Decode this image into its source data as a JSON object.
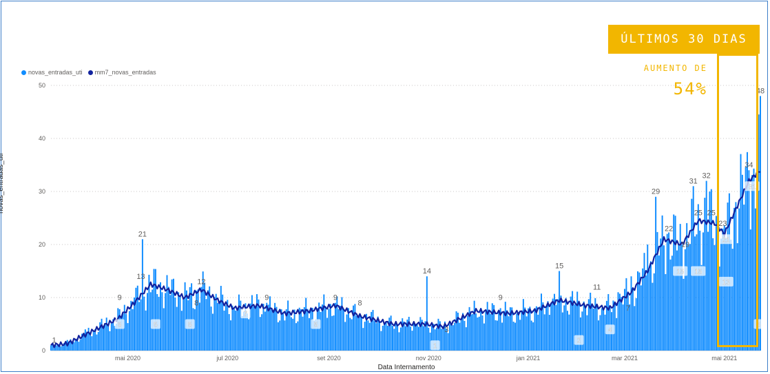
{
  "chart_data": {
    "type": "bar",
    "xlabel": "Data Internamento",
    "ylabel": "novas_entradas_uti",
    "ylim": [
      0,
      50
    ],
    "yticks": [
      "0",
      "10",
      "20",
      "30",
      "40",
      "50"
    ],
    "x_tick_labels": [
      "mai 2020",
      "jul 2020",
      "set 2020",
      "nov 2020",
      "jan 2021",
      "mar 2021",
      "mai 2021"
    ],
    "x_tick_dates": [
      "2020-05-01",
      "2020-07-01",
      "2020-09-01",
      "2020-11-01",
      "2021-01-01",
      "2021-03-01",
      "2021-05-01"
    ],
    "x_range": [
      "2020-03-15",
      "2021-05-23"
    ],
    "grid": true,
    "legend_position": "top-left",
    "series": [
      {
        "name": "novas_entradas_uti",
        "type": "bar",
        "color": "#118dff"
      },
      {
        "name": "mm7_novas_entradas",
        "type": "line",
        "color": "#12239e"
      }
    ],
    "bar_keypoints": [
      [
        "2020-03-15",
        1
      ],
      [
        "2020-03-25",
        2
      ],
      [
        "2020-04-05",
        4
      ],
      [
        "2020-04-15",
        6
      ],
      [
        "2020-04-25",
        8
      ],
      [
        "2020-05-05",
        10
      ],
      [
        "2020-05-10",
        21
      ],
      [
        "2020-05-15",
        11
      ],
      [
        "2020-05-30",
        10
      ],
      [
        "2020-06-10",
        8
      ],
      [
        "2020-06-15",
        12
      ],
      [
        "2020-06-25",
        9
      ],
      [
        "2020-07-05",
        8
      ],
      [
        "2020-07-25",
        9
      ],
      [
        "2020-08-10",
        6
      ],
      [
        "2020-08-25",
        8
      ],
      [
        "2020-09-05",
        9
      ],
      [
        "2020-09-20",
        7
      ],
      [
        "2020-10-05",
        5
      ],
      [
        "2020-10-25",
        5
      ],
      [
        "2020-10-31",
        14
      ],
      [
        "2020-11-05",
        4
      ],
      [
        "2020-11-15",
        5
      ],
      [
        "2020-11-30",
        7
      ],
      [
        "2020-12-15",
        8
      ],
      [
        "2020-12-25",
        7
      ],
      [
        "2021-01-05",
        8
      ],
      [
        "2021-01-15",
        9
      ],
      [
        "2021-01-20",
        15
      ],
      [
        "2021-02-05",
        8
      ],
      [
        "2021-02-15",
        8
      ],
      [
        "2021-02-25",
        11
      ],
      [
        "2021-03-05",
        14
      ],
      [
        "2021-03-15",
        20
      ],
      [
        "2021-03-20",
        29
      ],
      [
        "2021-03-27",
        22
      ],
      [
        "2021-04-05",
        20
      ],
      [
        "2021-04-12",
        31
      ],
      [
        "2021-04-20",
        32
      ],
      [
        "2021-04-30",
        23
      ],
      [
        "2021-05-08",
        28
      ],
      [
        "2021-05-16",
        34
      ],
      [
        "2021-05-23",
        48
      ]
    ],
    "mm7_keypoints": [
      [
        "2020-03-15",
        1
      ],
      [
        "2020-03-25",
        1.3
      ],
      [
        "2020-04-05",
        3
      ],
      [
        "2020-04-15",
        4.5
      ],
      [
        "2020-04-25",
        6
      ],
      [
        "2020-05-05",
        9
      ],
      [
        "2020-05-15",
        12.5
      ],
      [
        "2020-05-25",
        11.5
      ],
      [
        "2020-06-05",
        10
      ],
      [
        "2020-06-15",
        11.5
      ],
      [
        "2020-06-25",
        9.5
      ],
      [
        "2020-07-05",
        8
      ],
      [
        "2020-07-20",
        8.5
      ],
      [
        "2020-08-05",
        7
      ],
      [
        "2020-08-20",
        7.5
      ],
      [
        "2020-09-05",
        8.5
      ],
      [
        "2020-09-20",
        6.5
      ],
      [
        "2020-10-10",
        5
      ],
      [
        "2020-10-30",
        5
      ],
      [
        "2020-11-10",
        4.5
      ],
      [
        "2020-11-30",
        7.5
      ],
      [
        "2020-12-20",
        7
      ],
      [
        "2021-01-05",
        7.5
      ],
      [
        "2021-01-20",
        9.5
      ],
      [
        "2021-02-05",
        8.5
      ],
      [
        "2021-02-20",
        8
      ],
      [
        "2021-03-05",
        11
      ],
      [
        "2021-03-15",
        15
      ],
      [
        "2021-03-25",
        21
      ],
      [
        "2021-04-05",
        20
      ],
      [
        "2021-04-15",
        24.5
      ],
      [
        "2021-04-25",
        24
      ],
      [
        "2021-05-01",
        22
      ],
      [
        "2021-05-10",
        28
      ],
      [
        "2021-05-16",
        32
      ],
      [
        "2021-05-23",
        34
      ]
    ],
    "data_labels": [
      {
        "date": "2020-03-17",
        "value": 1,
        "text": "1",
        "series": "novas_entradas_uti"
      },
      {
        "date": "2020-05-10",
        "value": 21,
        "text": "21",
        "series": "novas_entradas_uti"
      },
      {
        "date": "2020-06-15",
        "value": 12,
        "text": "12",
        "series": "novas_entradas_uti"
      },
      {
        "date": "2020-09-05",
        "value": 9,
        "text": "9",
        "series": "novas_entradas_uti"
      },
      {
        "date": "2020-10-31",
        "value": 14,
        "text": "14",
        "series": "novas_entradas_uti"
      },
      {
        "date": "2021-01-20",
        "value": 15,
        "text": "15",
        "series": "novas_entradas_uti"
      },
      {
        "date": "2021-03-20",
        "value": 29,
        "text": "29",
        "series": "novas_entradas_uti"
      },
      {
        "date": "2021-04-12",
        "value": 31,
        "text": "31",
        "series": "novas_entradas_uti"
      },
      {
        "date": "2021-04-20",
        "value": 32,
        "text": "32",
        "series": "novas_entradas_uti"
      },
      {
        "date": "2021-04-30",
        "value": 23,
        "text": "23",
        "series": "novas_entradas_uti"
      },
      {
        "date": "2021-05-23",
        "value": 48,
        "text": "48",
        "series": "novas_entradas_uti"
      },
      {
        "date": "2020-04-26",
        "value": 9,
        "text": "9",
        "series": "novas_entradas_uti"
      },
      {
        "date": "2020-07-25",
        "value": 9,
        "text": "9",
        "series": "novas_entradas_uti"
      },
      {
        "date": "2020-12-15",
        "value": 9,
        "text": "9",
        "series": "novas_entradas_uti"
      },
      {
        "date": "2021-02-12",
        "value": 11,
        "text": "11",
        "series": "novas_entradas_uti"
      },
      {
        "date": "2020-05-09",
        "value": 13,
        "text": "13",
        "series": "mm7_novas_entradas"
      },
      {
        "date": "2020-06-12",
        "value": 8,
        "text": "8",
        "series": "mm7_novas_entradas"
      },
      {
        "date": "2020-09-20",
        "value": 8,
        "text": "8",
        "series": "mm7_novas_entradas"
      },
      {
        "date": "2020-11-12",
        "value": 3,
        "text": "3",
        "series": "mm7_novas_entradas"
      },
      {
        "date": "2021-03-03",
        "value": 7,
        "text": "7",
        "series": "mm7_novas_entradas"
      },
      {
        "date": "2021-03-28",
        "value": 22,
        "text": "22",
        "series": "mm7_novas_entradas"
      },
      {
        "date": "2021-04-07",
        "value": 19,
        "text": "19",
        "series": "mm7_novas_entradas"
      },
      {
        "date": "2021-04-15",
        "value": 25,
        "text": "25",
        "series": "mm7_novas_entradas"
      },
      {
        "date": "2021-04-23",
        "value": 25,
        "text": "25",
        "series": "mm7_novas_entradas"
      },
      {
        "date": "2021-05-16",
        "value": 34,
        "text": "34",
        "series": "mm7_novas_entradas"
      },
      {
        "date": "2020-04-26",
        "value": 5,
        "text": "5",
        "series": "box",
        "box": true
      },
      {
        "date": "2020-05-18",
        "value": 5,
        "text": "5",
        "series": "box",
        "box": true
      },
      {
        "date": "2020-06-08",
        "value": 5,
        "text": "5",
        "series": "box",
        "box": true
      },
      {
        "date": "2020-07-12",
        "value": 7,
        "text": "7",
        "series": "box",
        "box": true
      },
      {
        "date": "2020-08-24",
        "value": 5,
        "text": "5",
        "series": "box",
        "box": true
      },
      {
        "date": "2020-11-05",
        "value": 1,
        "text": "1",
        "series": "box",
        "box": true
      },
      {
        "date": "2021-02-01",
        "value": 2,
        "text": "2",
        "series": "box",
        "box": true
      },
      {
        "date": "2021-02-20",
        "value": 4,
        "text": "4",
        "series": "box",
        "box": true
      },
      {
        "date": "2021-04-04",
        "value": 15,
        "text": "15",
        "series": "box",
        "box": true
      },
      {
        "date": "2021-04-15",
        "value": 15,
        "text": "15",
        "series": "box",
        "box": true
      },
      {
        "date": "2021-05-02",
        "value": 21,
        "text": "21",
        "series": "box",
        "box": true
      },
      {
        "date": "2021-05-02",
        "value": 13,
        "text": "13",
        "series": "box",
        "box": true
      },
      {
        "date": "2021-05-18",
        "value": 31,
        "text": "31",
        "series": "box",
        "box": true
      },
      {
        "date": "2021-05-22",
        "value": 5,
        "text": "5",
        "series": "box",
        "box": true
      }
    ]
  },
  "legend": {
    "item1": "novas_entradas_uti",
    "item2": "mm7_novas_entradas",
    "color1": "#118dff",
    "color2": "#12239e"
  },
  "annotation": {
    "title": "ÚLTIMOS 30 DIAS",
    "subtitle": "AUMENTO DE",
    "value": "54%",
    "color": "#f2b600",
    "range": [
      "2021-04-23",
      "2021-05-23"
    ]
  }
}
